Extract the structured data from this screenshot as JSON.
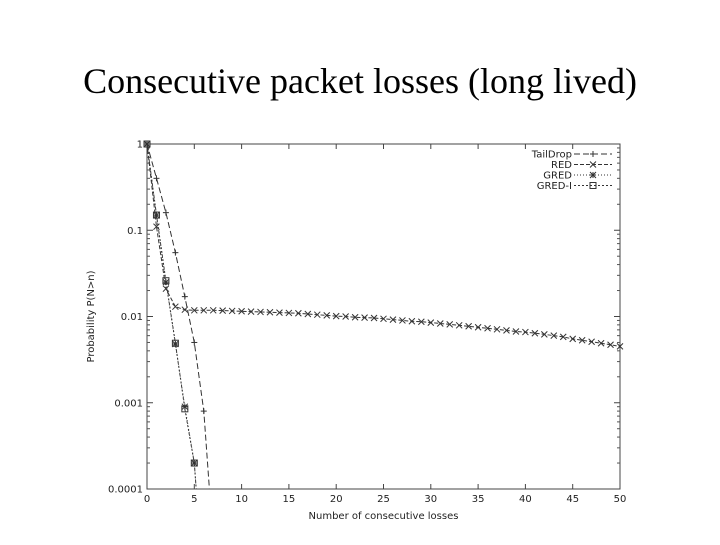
{
  "slide": {
    "title": "Consecutive packet losses (long lived)"
  },
  "colors": {
    "series": "#333333",
    "frame": "#444444",
    "grid": "#cccccc"
  },
  "chart_data": {
    "type": "line",
    "xlabel": "Number of consecutive losses",
    "ylabel": "Probability P(N>n)",
    "xlim": [
      0,
      50
    ],
    "ylim": [
      0.0001,
      1
    ],
    "yscale": "log",
    "grid": false,
    "legend_position": "top-right",
    "x_ticks": [
      "0",
      "5",
      "10",
      "15",
      "20",
      "25",
      "30",
      "35",
      "40",
      "45",
      "50"
    ],
    "y_ticks": [
      "1",
      "0.1",
      "0.01",
      "0.001",
      "0.0001"
    ],
    "series": [
      {
        "name": "TailDrop",
        "marker": "+",
        "dash": "6,3",
        "points": [
          [
            0,
            1
          ],
          [
            1,
            0.4
          ],
          [
            2,
            0.16
          ],
          [
            3,
            0.055
          ],
          [
            4,
            0.017
          ],
          [
            5,
            0.005
          ],
          [
            6,
            0.0008
          ],
          [
            6.6,
            0.0001
          ]
        ]
      },
      {
        "name": "RED",
        "marker": "x",
        "dash": "4,2",
        "points": [
          [
            0,
            1
          ],
          [
            1,
            0.11
          ],
          [
            2,
            0.021
          ],
          [
            3,
            0.013
          ],
          [
            4,
            0.012
          ],
          [
            5,
            0.0118
          ],
          [
            6,
            0.0118
          ],
          [
            7,
            0.0118
          ],
          [
            8,
            0.0117
          ],
          [
            9,
            0.0116
          ],
          [
            10,
            0.0115
          ],
          [
            11,
            0.0114
          ],
          [
            12,
            0.0113
          ],
          [
            13,
            0.0112
          ],
          [
            14,
            0.0111
          ],
          [
            15,
            0.011
          ],
          [
            16,
            0.0109
          ],
          [
            17,
            0.0107
          ],
          [
            18,
            0.0105
          ],
          [
            19,
            0.0103
          ],
          [
            20,
            0.0101
          ],
          [
            21,
            0.01
          ],
          [
            22,
            0.0098
          ],
          [
            23,
            0.0097
          ],
          [
            24,
            0.0096
          ],
          [
            25,
            0.0094
          ],
          [
            26,
            0.0092
          ],
          [
            27,
            0.009
          ],
          [
            28,
            0.0088
          ],
          [
            29,
            0.0087
          ],
          [
            30,
            0.0085
          ],
          [
            31,
            0.0083
          ],
          [
            32,
            0.0081
          ],
          [
            33,
            0.0079
          ],
          [
            34,
            0.0077
          ],
          [
            35,
            0.0075
          ],
          [
            36,
            0.0073
          ],
          [
            37,
            0.0071
          ],
          [
            38,
            0.0069
          ],
          [
            39,
            0.0067
          ],
          [
            40,
            0.0066
          ],
          [
            41,
            0.0064
          ],
          [
            42,
            0.0062
          ],
          [
            43,
            0.006
          ],
          [
            44,
            0.0058
          ],
          [
            45,
            0.0055
          ],
          [
            46,
            0.0053
          ],
          [
            47,
            0.0051
          ],
          [
            48,
            0.0049
          ],
          [
            49,
            0.0047
          ],
          [
            50,
            0.0045
          ]
        ]
      },
      {
        "name": "GRED",
        "marker": "*",
        "dash": "1,2",
        "points": [
          [
            0,
            1
          ],
          [
            1,
            0.15
          ],
          [
            2,
            0.025
          ],
          [
            3,
            0.0048
          ],
          [
            4,
            0.0009
          ],
          [
            5,
            0.0002
          ],
          [
            5.2,
            0.0001
          ]
        ]
      },
      {
        "name": "GRED-I",
        "marker": "square",
        "dash": "2,2",
        "points": [
          [
            0,
            1
          ],
          [
            1,
            0.15
          ],
          [
            2,
            0.026
          ],
          [
            3,
            0.0049
          ],
          [
            4,
            0.00085
          ],
          [
            5,
            0.0002
          ],
          [
            5.2,
            0.0001
          ]
        ]
      }
    ]
  }
}
